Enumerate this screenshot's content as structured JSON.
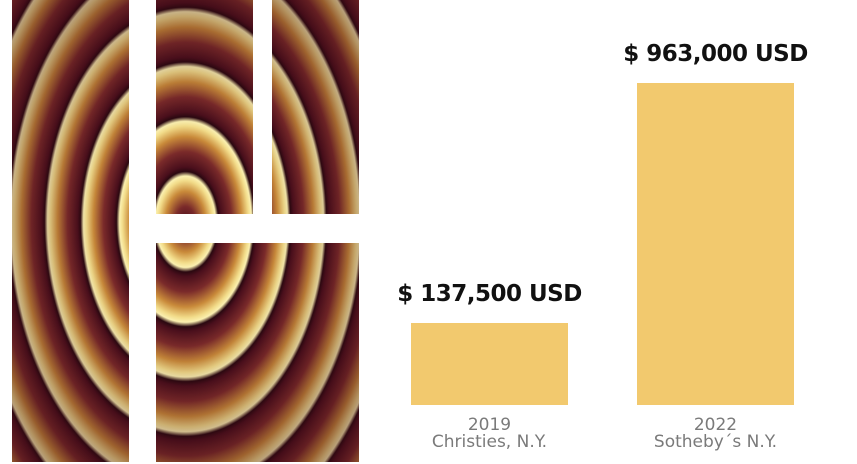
{
  "chart_data": {
    "type": "bar",
    "categories": [
      {
        "year": "2019",
        "venue": "Christies, N.Y."
      },
      {
        "year": "2022",
        "venue": "Sotheby´s N.Y."
      }
    ],
    "values": [
      137500,
      963000
    ],
    "data_labels": [
      "$ 137,500 USD",
      "$ 963,000 USD"
    ],
    "bar_color": "#f2c96e",
    "grid": false
  },
  "artwork": {
    "palette": [
      "#4a0f1c",
      "#c98a3a",
      "#f2dc8a"
    ]
  }
}
